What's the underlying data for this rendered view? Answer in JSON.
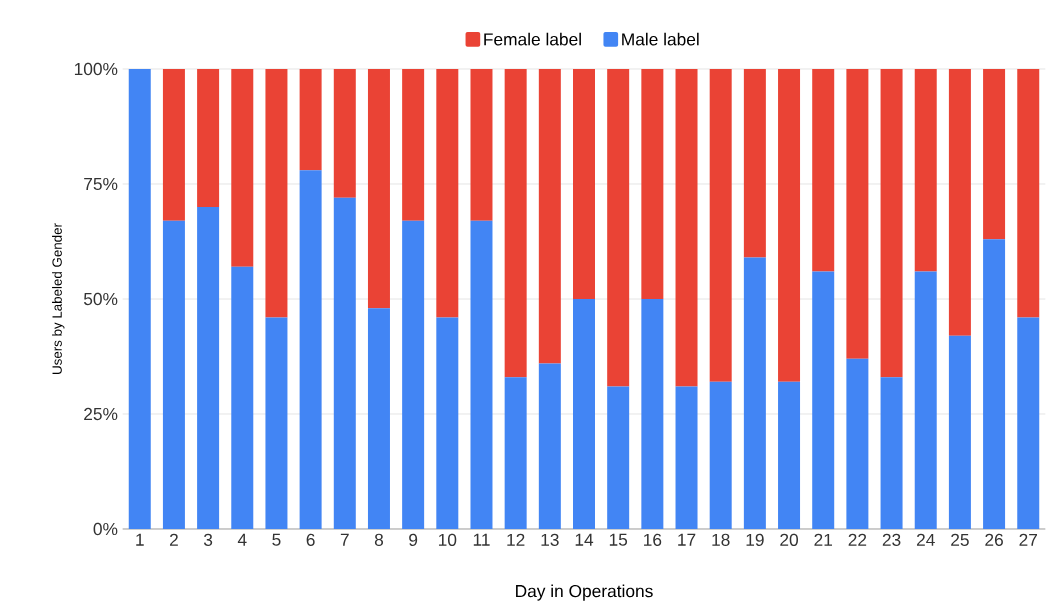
{
  "chart_data": {
    "type": "bar",
    "stacked": true,
    "xlabel": "Day in Operations",
    "ylabel": "Users by Labeled Gender",
    "categories": [
      "1",
      "2",
      "3",
      "4",
      "5",
      "6",
      "7",
      "8",
      "9",
      "10",
      "11",
      "12",
      "13",
      "14",
      "15",
      "16",
      "17",
      "18",
      "19",
      "20",
      "21",
      "22",
      "23",
      "24",
      "25",
      "26",
      "27"
    ],
    "series": [
      {
        "name": "Male label",
        "color": "#4285f4",
        "values": [
          100,
          67,
          70,
          57,
          46,
          78,
          72,
          48,
          67,
          46,
          67,
          33,
          36,
          50,
          31,
          50,
          31,
          32,
          59,
          32,
          56,
          37,
          33,
          56,
          42,
          63,
          46
        ]
      },
      {
        "name": "Female label",
        "color": "#ea4335",
        "values": [
          0,
          33,
          30,
          43,
          54,
          22,
          28,
          52,
          33,
          54,
          33,
          67,
          64,
          50,
          69,
          50,
          69,
          68,
          41,
          68,
          44,
          63,
          67,
          44,
          58,
          37,
          54
        ]
      }
    ],
    "ylim": [
      0,
      100
    ],
    "yticks": [
      {
        "value": 0,
        "label": "0%"
      },
      {
        "value": 25,
        "label": "25%"
      },
      {
        "value": 50,
        "label": "50%"
      },
      {
        "value": 75,
        "label": "75%"
      },
      {
        "value": 100,
        "label": "100%"
      }
    ],
    "grid": "y",
    "legend": "top"
  }
}
